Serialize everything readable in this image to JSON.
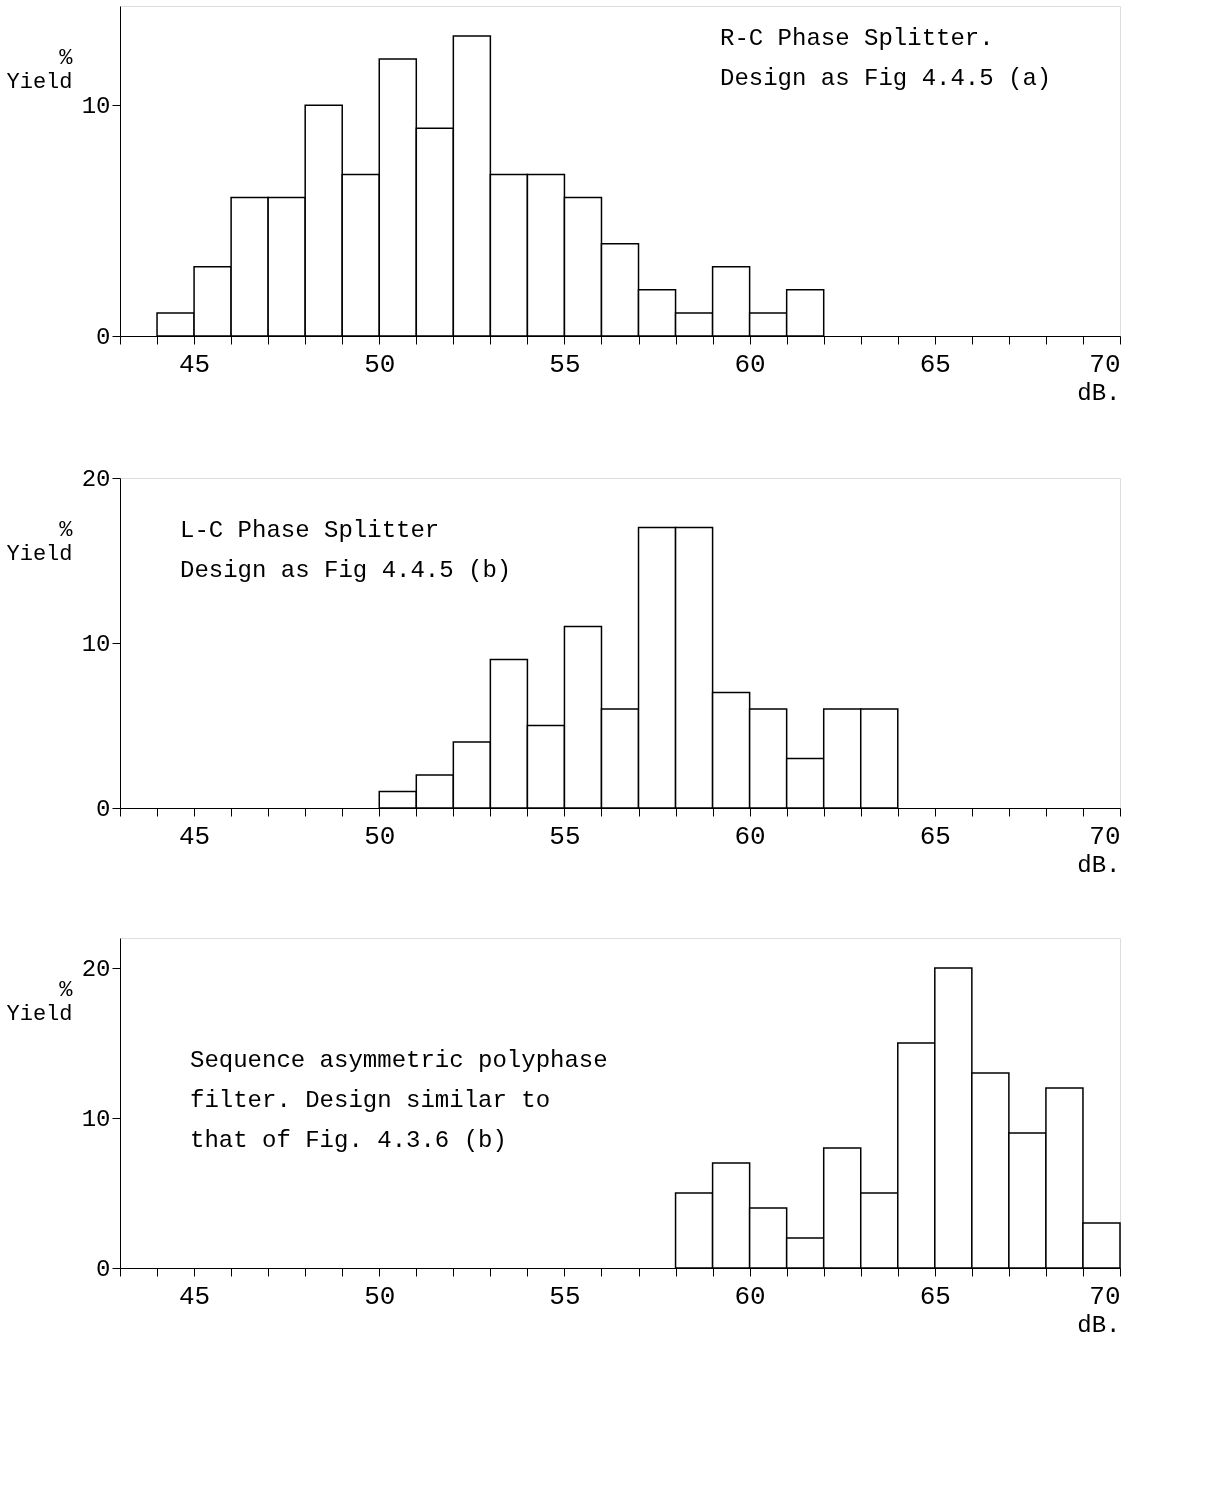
{
  "chart_data": [
    {
      "type": "histogram",
      "title": "R-C Phase Splitter.\nDesign as Fig 4.4.5 (a)",
      "xlabel": "dB.",
      "ylabel": "%\nYield",
      "bins": [
        44,
        45,
        46,
        47,
        48,
        49,
        50,
        51,
        52,
        53,
        54,
        55,
        56,
        57,
        58,
        59,
        60,
        61,
        62
      ],
      "values": [
        1,
        3,
        6,
        6,
        10,
        7,
        12,
        9,
        13,
        7,
        7,
        6,
        4,
        2,
        1,
        3,
        1,
        2
      ],
      "color": "#ffffff",
      "xlim": [
        43,
        70
      ],
      "ylim": [
        0,
        14.3
      ],
      "xticks": [
        {
          "value": 43,
          "label": null
        },
        {
          "value": 44,
          "label": null
        },
        45,
        {
          "value": 46,
          "label": null
        },
        {
          "value": 47,
          "label": null
        },
        {
          "value": 48,
          "label": null
        },
        {
          "value": 49,
          "label": null
        },
        50,
        {
          "value": 51,
          "label": null
        },
        {
          "value": 52,
          "label": null
        },
        {
          "value": 53,
          "label": null
        },
        {
          "value": 54,
          "label": null
        },
        55,
        {
          "value": 56,
          "label": null
        },
        {
          "value": 57,
          "label": null
        },
        {
          "value": 58,
          "label": null
        },
        {
          "value": 59,
          "label": null
        },
        60,
        {
          "value": 61,
          "label": null
        },
        {
          "value": 62,
          "label": null
        },
        {
          "value": 63,
          "label": null
        },
        {
          "value": 64,
          "label": null
        },
        65,
        {
          "value": 66,
          "label": null
        },
        {
          "value": 67,
          "label": null
        },
        {
          "value": 68,
          "label": null
        },
        {
          "value": 69,
          "label": null
        },
        70
      ],
      "yticks": [
        0,
        10
      ],
      "grid": false
    },
    {
      "type": "histogram",
      "title": "L-C Phase Splitter\nDesign as Fig 4.4.5 (b)",
      "xlabel": "dB.",
      "ylabel": "%\nYield",
      "bins": [
        50,
        51,
        52,
        53,
        54,
        55,
        56,
        57,
        58,
        59,
        60,
        61,
        62,
        63,
        64
      ],
      "values": [
        1,
        2,
        4,
        9,
        5,
        11,
        6,
        17,
        17,
        7,
        6,
        3,
        6,
        6
      ],
      "color": "#ffffff",
      "xlim": [
        43,
        70
      ],
      "ylim": [
        0,
        20
      ],
      "xticks": [
        {
          "value": 43,
          "label": null
        },
        {
          "value": 44,
          "label": null
        },
        45,
        {
          "value": 46,
          "label": null
        },
        {
          "value": 47,
          "label": null
        },
        {
          "value": 48,
          "label": null
        },
        {
          "value": 49,
          "label": null
        },
        50,
        {
          "value": 51,
          "label": null
        },
        {
          "value": 52,
          "label": null
        },
        {
          "value": 53,
          "label": null
        },
        {
          "value": 54,
          "label": null
        },
        55,
        {
          "value": 56,
          "label": null
        },
        {
          "value": 57,
          "label": null
        },
        {
          "value": 58,
          "label": null
        },
        {
          "value": 59,
          "label": null
        },
        60,
        {
          "value": 61,
          "label": null
        },
        {
          "value": 62,
          "label": null
        },
        {
          "value": 63,
          "label": null
        },
        {
          "value": 64,
          "label": null
        },
        65,
        {
          "value": 66,
          "label": null
        },
        {
          "value": 67,
          "label": null
        },
        {
          "value": 68,
          "label": null
        },
        {
          "value": 69,
          "label": null
        },
        70
      ],
      "yticks": [
        0,
        10,
        20
      ],
      "grid": false
    },
    {
      "type": "histogram",
      "title": "Sequence asymmetric polyphase\nfilter.  Design similar to\nthat of Fig. 4.3.6 (b)",
      "xlabel": "dB.",
      "ylabel": "%\nYield",
      "bins": [
        58,
        59,
        60,
        61,
        62,
        63,
        64,
        65,
        66,
        67,
        68,
        69,
        70
      ],
      "values": [
        5,
        7,
        4,
        2,
        8,
        5,
        15,
        20,
        13,
        9,
        12,
        3
      ],
      "color": "#ffffff",
      "xlim": [
        43,
        70
      ],
      "ylim": [
        0,
        22
      ],
      "xticks": [
        {
          "value": 43,
          "label": null
        },
        {
          "value": 44,
          "label": null
        },
        45,
        {
          "value": 46,
          "label": null
        },
        {
          "value": 47,
          "label": null
        },
        {
          "value": 48,
          "label": null
        },
        {
          "value": 49,
          "label": null
        },
        50,
        {
          "value": 51,
          "label": null
        },
        {
          "value": 52,
          "label": null
        },
        {
          "value": 53,
          "label": null
        },
        {
          "value": 54,
          "label": null
        },
        55,
        {
          "value": 56,
          "label": null
        },
        {
          "value": 57,
          "label": null
        },
        {
          "value": 58,
          "label": null
        },
        {
          "value": 59,
          "label": null
        },
        60,
        {
          "value": 61,
          "label": null
        },
        {
          "value": 62,
          "label": null
        },
        {
          "value": 63,
          "label": null
        },
        {
          "value": 64,
          "label": null
        },
        65,
        {
          "value": 66,
          "label": null
        },
        {
          "value": 67,
          "label": null
        },
        {
          "value": 68,
          "label": null
        },
        {
          "value": 69,
          "label": null
        },
        70
      ],
      "yticks": [
        0,
        10,
        20
      ],
      "grid": false
    }
  ]
}
